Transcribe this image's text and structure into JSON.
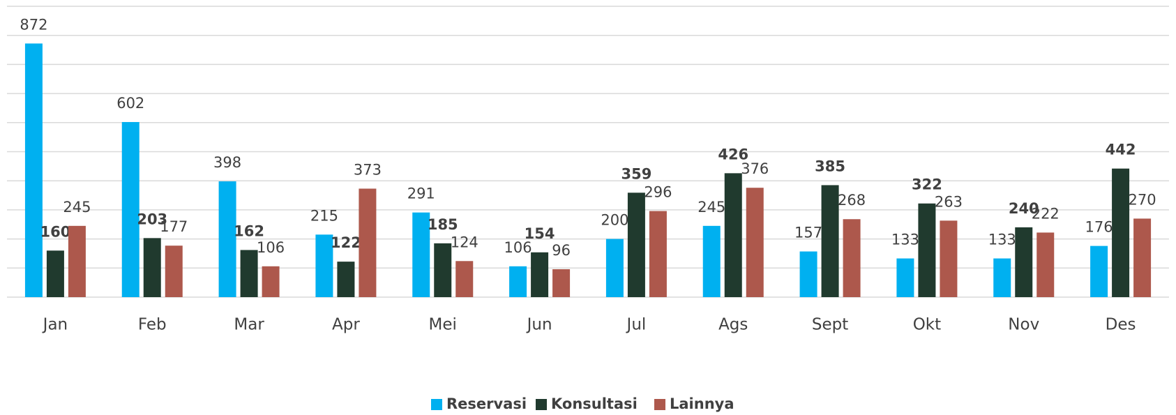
{
  "chart_data": {
    "type": "bar",
    "categories": [
      "Jan",
      "Feb",
      "Mar",
      "Apr",
      "Mei",
      "Jun",
      "Jul",
      "Ags",
      "Sept",
      "Okt",
      "Nov",
      "Des"
    ],
    "series": [
      {
        "name": "Reservasi",
        "color": "#00b0f0",
        "values": [
          872,
          602,
          398,
          215,
          291,
          106,
          200,
          245,
          157,
          133,
          133,
          176
        ]
      },
      {
        "name": "Konsultasi",
        "color": "#203a2e",
        "values": [
          160,
          203,
          162,
          122,
          185,
          154,
          359,
          426,
          385,
          322,
          240,
          442
        ]
      },
      {
        "name": "Lainnya",
        "color": "#ad584c",
        "values": [
          245,
          177,
          106,
          373,
          124,
          96,
          296,
          376,
          268,
          263,
          222,
          270
        ]
      }
    ],
    "ylim": [
      0,
      1000
    ],
    "yticks": [
      0,
      100,
      200,
      300,
      400,
      500,
      600,
      700,
      800,
      900,
      1000
    ],
    "grid": true,
    "legend": "bottom"
  }
}
